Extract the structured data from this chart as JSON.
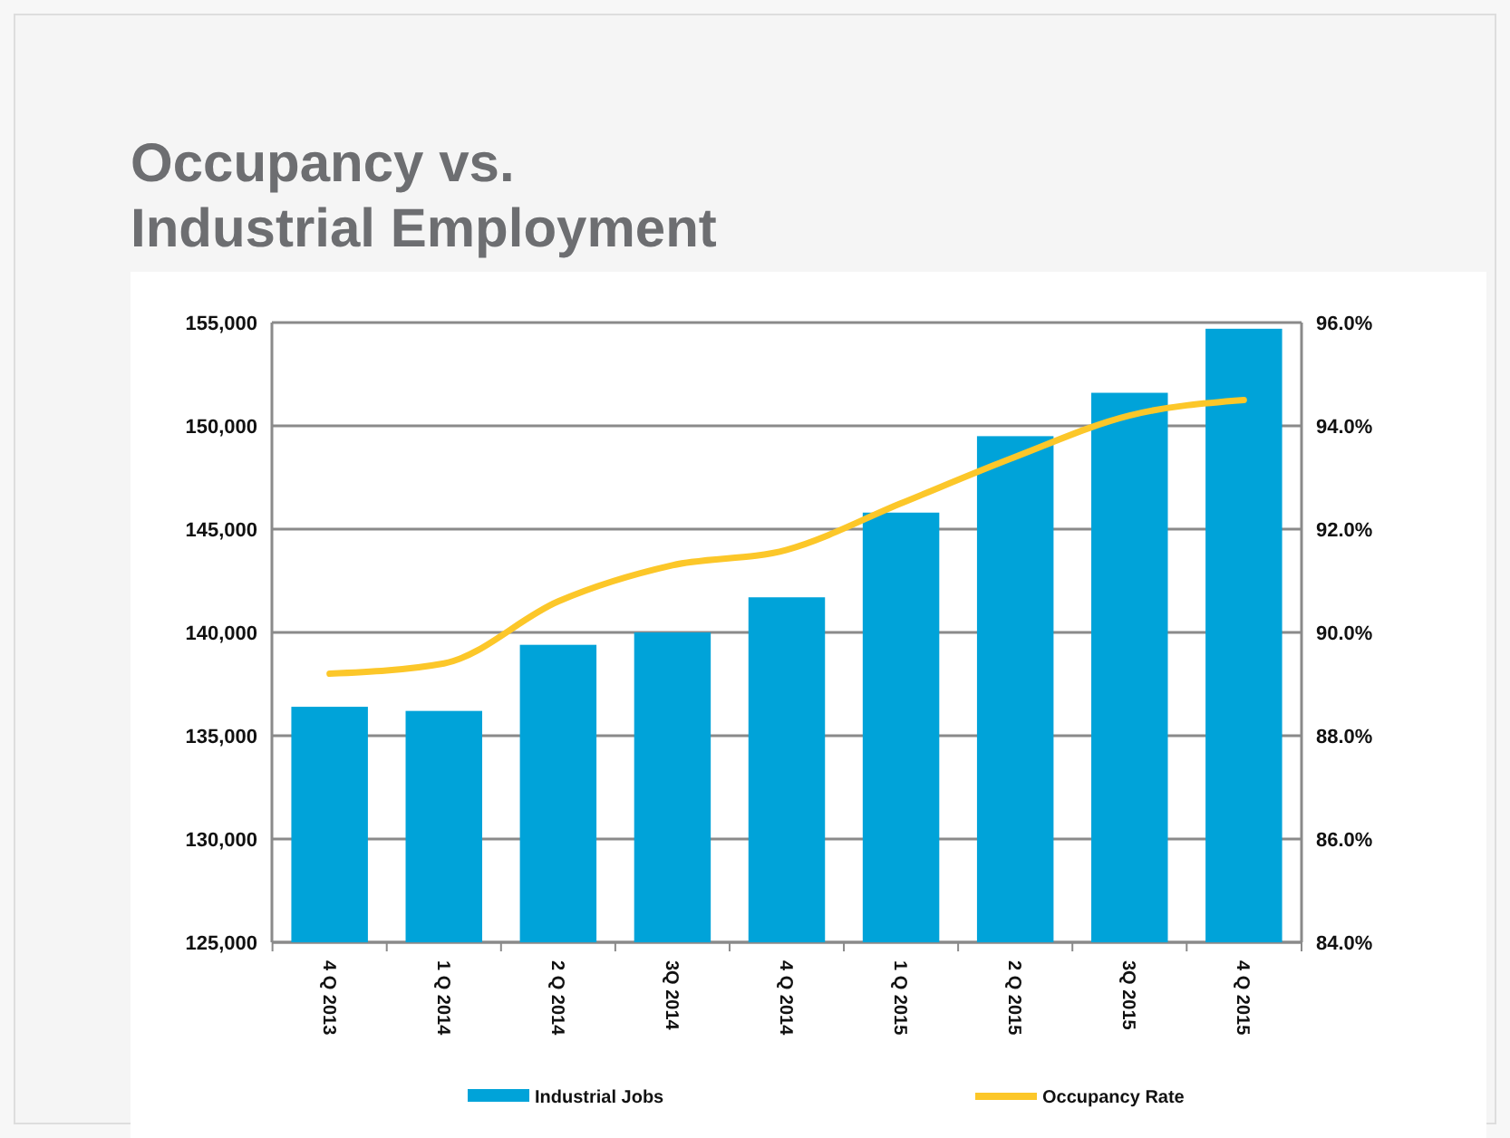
{
  "chart_data": {
    "type": "bar",
    "title": "Occupancy vs. Industrial Employment",
    "categories": [
      "4 Q 2013",
      "1 Q 2014",
      "2 Q 2014",
      "3Q 2014",
      "4 Q 2014",
      "1 Q 2015",
      "2 Q 2015",
      "3Q 2015",
      "4 Q 2015"
    ],
    "series": [
      {
        "name": "Industrial Jobs",
        "color": "#00a3d9",
        "values": [
          136400,
          136200,
          139400,
          140000,
          141700,
          145800,
          149500,
          151600,
          154700
        ]
      },
      {
        "name": "Occupancy Rate",
        "type": "line",
        "axis": "y2",
        "color": "#fcc729",
        "values": [
          89.2,
          89.4,
          90.6,
          91.3,
          91.6,
          92.5,
          93.4,
          94.2,
          94.5
        ]
      }
    ],
    "ylim": [
      125000,
      155000
    ],
    "yticks": [
      {
        "value": 125000,
        "label": "125,000"
      },
      {
        "value": 130000,
        "label": "130,000"
      },
      {
        "value": 135000,
        "label": "135,000"
      },
      {
        "value": 140000,
        "label": "140,000"
      },
      {
        "value": 145000,
        "label": "145,000"
      },
      {
        "value": 150000,
        "label": "150,000"
      },
      {
        "value": 155000,
        "label": "155,000"
      }
    ],
    "y2lim": [
      84,
      96
    ],
    "y2ticks": [
      {
        "value": 84,
        "label": "84.0%"
      },
      {
        "value": 86,
        "label": "86.0%"
      },
      {
        "value": 88,
        "label": "88.0%"
      },
      {
        "value": 90,
        "label": "90.0%"
      },
      {
        "value": 92,
        "label": "92.0%"
      },
      {
        "value": 94,
        "label": "94.0%"
      },
      {
        "value": 96,
        "label": "96.0%"
      }
    ],
    "grid": "y",
    "legend": "bottom"
  }
}
